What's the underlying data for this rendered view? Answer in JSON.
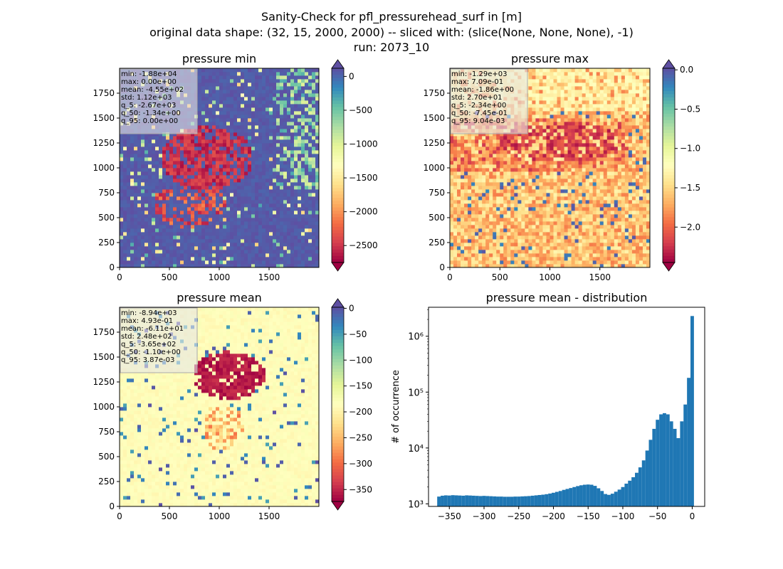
{
  "figure": {
    "title_lines": [
      "Sanity-Check for pfl_pressurehead_surf in [m]",
      "original data shape: (32, 15, 2000, 2000) -- sliced with: (slice(None, None, None), -1)",
      "run: 2073_10"
    ]
  },
  "colormaps": {
    "spectral": [
      "#9e0142",
      "#d53e4f",
      "#f46d43",
      "#fdae61",
      "#fee08b",
      "#ffffbf",
      "#e6f598",
      "#abdda4",
      "#66c2a5",
      "#3288bd",
      "#5e4fa2"
    ]
  },
  "chart_data": [
    {
      "type": "heatmap",
      "title": "pressure min",
      "x_ticks": [
        "0",
        "500",
        "1000",
        "1500"
      ],
      "y_ticks": [
        "0",
        "250",
        "500",
        "750",
        "1000",
        "1250",
        "1500",
        "1750"
      ],
      "colorbar": {
        "range": [
          -2750,
          120
        ],
        "ticks": [
          0,
          -500,
          -1000,
          -1500,
          -2000,
          -2500
        ],
        "tick_labels": [
          "0",
          "−500",
          "−1000",
          "−1500",
          "−2000",
          "−2500"
        ],
        "extend": "both"
      },
      "stats": [
        "min: -1.88e+04",
        "max: 0.00e+00",
        "mean: -4.55e+02",
        "std: 1.12e+03",
        "q_5: -2.67e+03",
        "q_50: -1.34e+00",
        "q_95: 0.00e+00"
      ]
    },
    {
      "type": "heatmap",
      "title": "pressure max",
      "x_ticks": [
        "0",
        "500",
        "1000",
        "1500"
      ],
      "y_ticks": [
        "0",
        "250",
        "500",
        "750",
        "1000",
        "1250",
        "1500",
        "1750"
      ],
      "colorbar": {
        "range": [
          -2.45,
          0.02
        ],
        "ticks": [
          0,
          -0.5,
          -1,
          -1.5,
          -2
        ],
        "tick_labels": [
          "0.0",
          "−0.5",
          "−1.0",
          "−1.5",
          "−2.0"
        ],
        "extend": "both"
      },
      "stats": [
        "min: -1.29e+03",
        "max: 7.09e-01",
        "mean: -1.86e+00",
        "std: 2.70e+01",
        "q_5: -2.34e+00",
        "q_50: -7.45e-01",
        "q_95: 9.04e-03"
      ]
    },
    {
      "type": "heatmap",
      "title": "pressure mean",
      "x_ticks": [
        "0",
        "500",
        "1000",
        "1500"
      ],
      "y_ticks": [
        "0",
        "250",
        "500",
        "750",
        "1000",
        "1250",
        "1500",
        "1750"
      ],
      "colorbar": {
        "range": [
          -373,
          2
        ],
        "ticks": [
          0,
          -50,
          -100,
          -150,
          -200,
          -250,
          -300,
          -350
        ],
        "tick_labels": [
          "0",
          "−50",
          "−100",
          "−150",
          "−200",
          "−250",
          "−300",
          "−350"
        ],
        "extend": "both"
      },
      "stats": [
        "min: -8.94e+03",
        "max: 4.93e-01",
        "mean: -6.11e+01",
        "std: 2.48e+02",
        "q_5: -3.65e+02",
        "q_50: -1.10e+00",
        "q_95: 3.87e-03"
      ]
    },
    {
      "type": "bar",
      "title": "pressure mean - distribution",
      "ylabel": "# of occurrence",
      "yscale": "log",
      "xlim": [
        -380,
        18
      ],
      "ylim": [
        900,
        3300000
      ],
      "x_ticks": [
        -350,
        -300,
        -250,
        -200,
        -150,
        -100,
        -50,
        0
      ],
      "x_tick_labels": [
        "−350",
        "−300",
        "−250",
        "−200",
        "−150",
        "−100",
        "−50",
        "0"
      ],
      "y_ticks": [
        1000,
        10000,
        100000,
        1000000
      ],
      "y_tick_labels": [
        "10³",
        "10⁴",
        "10⁵",
        "10⁶"
      ],
      "bar_color": "#1f77b4",
      "x": [
        -365,
        -360,
        -355,
        -350,
        -345,
        -340,
        -335,
        -330,
        -325,
        -320,
        -315,
        -310,
        -305,
        -300,
        -295,
        -290,
        -285,
        -280,
        -275,
        -270,
        -265,
        -260,
        -255,
        -250,
        -245,
        -240,
        -235,
        -230,
        -225,
        -220,
        -215,
        -210,
        -205,
        -200,
        -195,
        -190,
        -185,
        -180,
        -175,
        -170,
        -165,
        -160,
        -155,
        -150,
        -145,
        -140,
        -135,
        -130,
        -125,
        -120,
        -115,
        -110,
        -105,
        -100,
        -95,
        -90,
        -85,
        -80,
        -75,
        -70,
        -65,
        -60,
        -55,
        -50,
        -45,
        -40,
        -35,
        -30,
        -25,
        -20,
        -15,
        -10,
        -5,
        0
      ],
      "values": [
        1350,
        1400,
        1420,
        1410,
        1430,
        1420,
        1410,
        1400,
        1420,
        1410,
        1400,
        1390,
        1380,
        1390,
        1380,
        1370,
        1360,
        1350,
        1350,
        1340,
        1340,
        1340,
        1350,
        1350,
        1360,
        1370,
        1380,
        1400,
        1420,
        1440,
        1460,
        1490,
        1530,
        1580,
        1640,
        1700,
        1780,
        1850,
        1920,
        2000,
        2080,
        2150,
        2200,
        2220,
        2200,
        2100,
        1900,
        1700,
        1500,
        1450,
        1520,
        1650,
        1800,
        2000,
        2300,
        2600,
        3000,
        3600,
        4500,
        6000,
        9000,
        14000,
        22000,
        32000,
        40000,
        42000,
        40000,
        30000,
        22000,
        15000,
        30000,
        60000,
        180000,
        2300000
      ]
    }
  ]
}
